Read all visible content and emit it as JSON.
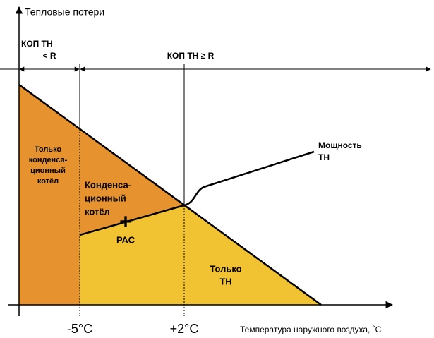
{
  "axis_y_label": "Тепловые потери",
  "axis_x_label": "Температура наружного воздуха, ˚C",
  "ticks": [
    "-5°C",
    "+2°C"
  ],
  "zone_top_left": [
    "КОП ТН",
    "< R"
  ],
  "zone_top_right": "КОП ТН ≥ R",
  "region_boiler_only": [
    "Только",
    "конденса-",
    "ционный",
    "котёл"
  ],
  "region_boiler": [
    "Конденса-",
    "ционный",
    "котёл"
  ],
  "plus": "+",
  "pac": "РАС",
  "region_hp_only": [
    "Только",
    "ТН"
  ],
  "hp_power": [
    "Мощность",
    "ТН"
  ]
}
